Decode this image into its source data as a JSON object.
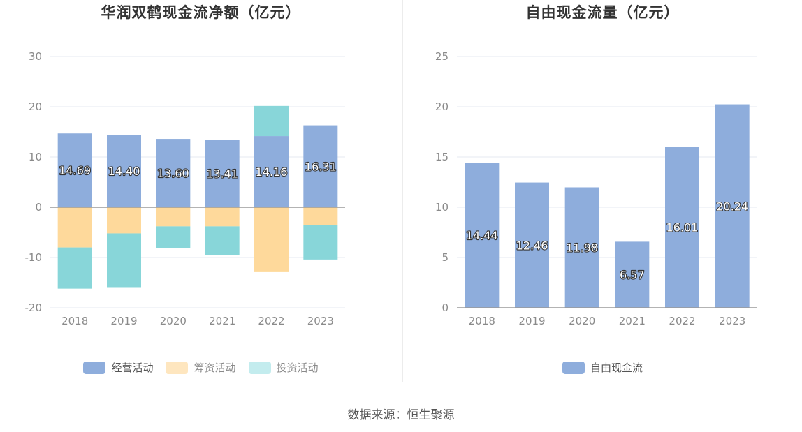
{
  "chart_data": [
    {
      "type": "bar",
      "stacked": true,
      "title": "华润双鹤现金流净额（亿元）",
      "categories": [
        "2018",
        "2019",
        "2020",
        "2021",
        "2022",
        "2023"
      ],
      "ylim": [
        -20,
        30
      ],
      "yticks": [
        "30",
        "20",
        "10",
        "0",
        "-10",
        "-20"
      ],
      "legend_position": "bottom",
      "grid": true,
      "series": [
        {
          "name": "经营活动",
          "color": "#8eaddc",
          "values": [
            14.69,
            14.4,
            13.6,
            13.41,
            14.16,
            16.31
          ],
          "labels": [
            "14.69",
            "14.40",
            "13.60",
            "13.41",
            "14.16",
            "16.31"
          ]
        },
        {
          "name": "筹资活动",
          "color": "#fed99b",
          "values": [
            -8.0,
            -5.2,
            -3.8,
            -3.8,
            -12.9,
            -3.6
          ]
        },
        {
          "name": "投资活动",
          "color": "#88d6d9",
          "values": [
            -8.2,
            -10.7,
            -4.3,
            -5.7,
            6.0,
            -6.8
          ]
        }
      ]
    },
    {
      "type": "bar",
      "title": "自由现金流量（亿元）",
      "categories": [
        "2018",
        "2019",
        "2020",
        "2021",
        "2022",
        "2023"
      ],
      "ylim": [
        0,
        25
      ],
      "yticks": [
        "25",
        "20",
        "15",
        "10",
        "5",
        "0"
      ],
      "legend_position": "bottom",
      "grid": true,
      "series": [
        {
          "name": "自由现金流",
          "color": "#8eaddc",
          "values": [
            14.44,
            12.46,
            11.98,
            6.57,
            16.01,
            20.24
          ],
          "labels": [
            "14.44",
            "12.46",
            "11.98",
            "6.57",
            "16.01",
            "20.24"
          ]
        }
      ]
    }
  ],
  "legend_colors": {
    "invest_swatch": "#c3ecee"
  },
  "source": "数据来源：恒生聚源"
}
